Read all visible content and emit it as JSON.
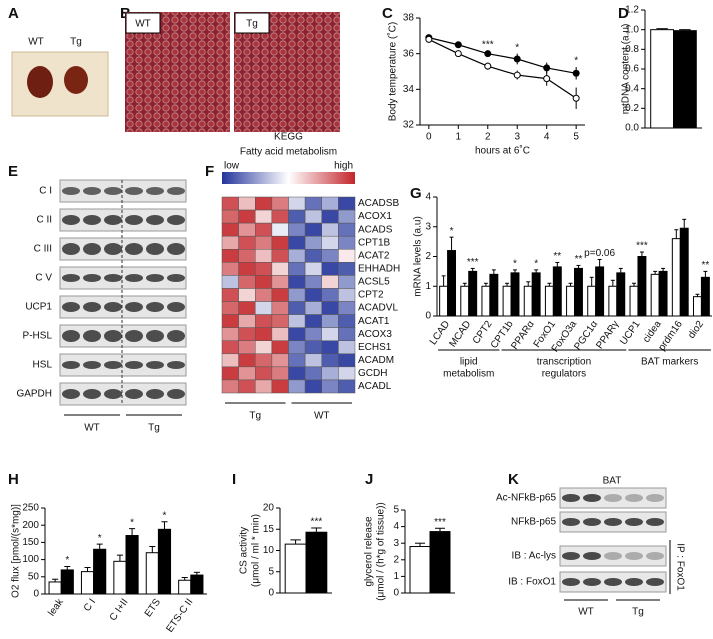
{
  "panel_A": {
    "letter": "A",
    "labels": [
      "WT",
      "Tg"
    ]
  },
  "panel_B": {
    "letter": "B",
    "labels": [
      "WT",
      "Tg"
    ]
  },
  "panel_E": {
    "letter": "E",
    "rows": [
      "C I",
      "C II",
      "C III",
      "C V",
      "UCP1",
      "P-HSL",
      "HSL",
      "GAPDH"
    ],
    "groups": [
      "WT",
      "Tg"
    ]
  },
  "panel_K": {
    "letter": "K",
    "title": "BAT",
    "rows": [
      "Ac-NFkB-p65",
      "NFkB-p65",
      "IB : Ac-lys",
      "IB : FoxO1"
    ],
    "side_label": "IP : FoxO1",
    "groups": [
      "WT",
      "Tg"
    ]
  },
  "chart_data": [
    {
      "type": "line",
      "panel": "C",
      "ylabel": "Body temperature (˚C)",
      "xlabel": "hours at 6˚C",
      "x": [
        0,
        1,
        2,
        3,
        4,
        5
      ],
      "xlim": [
        -0.3,
        5.3
      ],
      "xticks": [
        0,
        1,
        2,
        3,
        4,
        5
      ],
      "ylim": [
        32,
        38
      ],
      "yticks": [
        32,
        34,
        36,
        38
      ],
      "series": [
        {
          "color": "#000000",
          "values": [
            36.9,
            36.5,
            36.0,
            35.7,
            35.2,
            34.9
          ],
          "errors": [
            0.15,
            0.1,
            0.15,
            0.3,
            0.3,
            0.35
          ]
        },
        {
          "color": "#ffffff",
          "values": [
            36.8,
            36.0,
            35.3,
            34.8,
            34.6,
            33.5
          ],
          "errors": [
            0.15,
            0.15,
            0.2,
            0.25,
            0.4,
            0.6
          ]
        }
      ],
      "annotations": [
        {
          "x": 2,
          "text": "***"
        },
        {
          "x": 3,
          "text": "*"
        },
        {
          "x": 5,
          "text": "*"
        }
      ]
    },
    {
      "type": "bar",
      "panel": "D",
      "ylabel": "mtDNA content (a.u)",
      "categories": [
        null
      ],
      "ylim": [
        0,
        1.2
      ],
      "yticks": [
        {
          "value": 0,
          "label": "0.0"
        },
        {
          "value": 0.2,
          "label": "0.2"
        },
        {
          "value": 0.4,
          "label": "0.4"
        },
        {
          "value": 0.6,
          "label": "0.6"
        },
        {
          "value": 0.8,
          "label": "0.8"
        },
        {
          "value": 1,
          "label": "1.0"
        },
        {
          "value": 1.2,
          "label": "1.2"
        }
      ],
      "series": [
        {
          "color": "#ffffff",
          "values": [
            1.0
          ],
          "errors": [
            0.01
          ]
        },
        {
          "color": "#000000",
          "values": [
            0.99
          ],
          "errors": [
            0.01
          ]
        }
      ]
    },
    {
      "type": "heatmap",
      "panel": "F",
      "title": "KEGG",
      "subtitle": "Fatty acid metabolism",
      "low_label": "low",
      "high_label": "high",
      "zlim": [
        -1,
        1
      ],
      "colormap": [
        "#23349b",
        "#ffffff",
        "#c3262b"
      ],
      "groups": [
        "Tg",
        "WT"
      ],
      "rows": [
        "ACADSB",
        "ACOX1",
        "ACADS",
        "CPT1B",
        "ACAT2",
        "EHHADH",
        "ACSL5",
        "CPT2",
        "ACADVL",
        "ACAT1",
        "ACOX3",
        "ECHS1",
        "ACADM",
        "GCDH",
        "ACADL"
      ],
      "values": [
        [
          0.8,
          0.3,
          0.9,
          0.6,
          -0.2,
          -0.7,
          -0.4,
          -0.9
        ],
        [
          0.7,
          0.9,
          0.2,
          0.8,
          -0.8,
          -0.3,
          -0.9,
          -0.5
        ],
        [
          0.9,
          0.5,
          0.8,
          -0.1,
          -0.6,
          -0.9,
          -0.3,
          -0.7
        ],
        [
          0.4,
          0.8,
          0.6,
          0.9,
          -0.9,
          -0.5,
          -0.2,
          -0.6
        ],
        [
          0.9,
          0.7,
          0.3,
          0.8,
          -0.4,
          -0.8,
          -0.6,
          0.1
        ],
        [
          0.6,
          0.9,
          0.8,
          0.2,
          -0.7,
          -0.2,
          -0.9,
          -0.8
        ],
        [
          -0.3,
          0.7,
          0.9,
          0.5,
          -0.9,
          -0.6,
          0.2,
          -0.5
        ],
        [
          0.8,
          0.2,
          0.6,
          0.9,
          -0.5,
          -0.9,
          -0.7,
          -0.3
        ],
        [
          0.7,
          0.9,
          -0.2,
          0.6,
          -0.8,
          -0.4,
          -0.9,
          -0.6
        ],
        [
          0.9,
          0.4,
          0.8,
          0.7,
          -0.3,
          -0.9,
          -0.5,
          -0.8
        ],
        [
          0.5,
          0.8,
          0.9,
          0.3,
          -0.9,
          -0.6,
          -0.2,
          -0.7
        ],
        [
          0.8,
          0.6,
          0.2,
          0.9,
          -0.6,
          -0.8,
          -0.9,
          -0.3
        ],
        [
          0.3,
          0.9,
          0.7,
          0.5,
          -0.7,
          -0.3,
          -0.8,
          -0.9
        ],
        [
          0.9,
          0.5,
          0.8,
          0.6,
          -0.9,
          -0.7,
          -0.4,
          -0.2
        ],
        [
          0.6,
          0.8,
          0.4,
          0.9,
          -0.5,
          -0.9,
          -0.6,
          -0.8
        ]
      ]
    },
    {
      "type": "bar",
      "panel": "G",
      "ylabel": "mRNA levels (a.u)",
      "categories": [
        "LCAD",
        "MCAD",
        "CPT2",
        "CPT1b",
        "PPARα",
        "FoxO1",
        "FoxO3a",
        "PGC1α",
        "PPARγ",
        "UCP1",
        "cidea",
        "prdm16",
        "dio2"
      ],
      "ylim": [
        0,
        4
      ],
      "yticks": [
        0,
        1,
        2,
        3,
        4
      ],
      "series": [
        {
          "color": "#ffffff",
          "values": [
            1.0,
            1.0,
            1.0,
            1.0,
            1.0,
            1.0,
            1.0,
            1.0,
            1.0,
            1.0,
            1.4,
            2.6,
            0.65
          ],
          "errors": [
            0.35,
            0.1,
            0.1,
            0.1,
            0.15,
            0.1,
            0.1,
            0.3,
            0.2,
            0.1,
            0.1,
            0.3,
            0.08
          ]
        },
        {
          "color": "#000000",
          "values": [
            2.2,
            1.5,
            1.4,
            1.45,
            1.45,
            1.65,
            1.6,
            1.65,
            1.45,
            2.0,
            1.5,
            2.95,
            1.3
          ],
          "errors": [
            0.45,
            0.1,
            0.15,
            0.1,
            0.1,
            0.15,
            0.1,
            0.25,
            0.15,
            0.15,
            0.1,
            0.3,
            0.2
          ]
        }
      ],
      "annotations": [
        {
          "category": "LCAD",
          "text": "*"
        },
        {
          "category": "MCAD",
          "text": "***"
        },
        {
          "category": "CPT1b",
          "text": "*"
        },
        {
          "category": "PPARα",
          "text": "*"
        },
        {
          "category": "FoxO1",
          "text": "**"
        },
        {
          "category": "FoxO3a",
          "text": "**"
        },
        {
          "category": "PGC1α",
          "text": "p=0.06"
        },
        {
          "category": "UCP1",
          "text": "***"
        },
        {
          "category": "dio2",
          "text": "**"
        }
      ],
      "groups": [
        {
          "label": [
            "lipid",
            "metabolism"
          ],
          "from": "LCAD",
          "to": "CPT2"
        },
        {
          "label": [
            "transcription",
            "regulators"
          ],
          "from": "CPT1b",
          "to": "PPARγ"
        },
        {
          "label": [
            "BAT markers"
          ],
          "from": "UCP1",
          "to": "dio2"
        }
      ]
    },
    {
      "type": "bar",
      "panel": "H",
      "ylabel": "O2 flux [pmol/(s*mg)]",
      "categories": [
        "leak",
        "C I",
        "C I+II",
        "ETS",
        "ETS-C II"
      ],
      "ylim": [
        0,
        250
      ],
      "yticks": [
        0,
        50,
        100,
        150,
        200,
        250
      ],
      "series": [
        {
          "color": "#ffffff",
          "values": [
            35,
            65,
            95,
            120,
            40
          ],
          "errors": [
            8,
            12,
            18,
            18,
            8
          ]
        },
        {
          "color": "#000000",
          "values": [
            70,
            130,
            170,
            188,
            55
          ],
          "errors": [
            10,
            15,
            20,
            22,
            8
          ]
        }
      ],
      "annotations": [
        {
          "category": "leak",
          "text": "*"
        },
        {
          "category": "C I",
          "text": "*"
        },
        {
          "category": "C I+II",
          "text": "*"
        },
        {
          "category": "ETS",
          "text": "*"
        }
      ]
    },
    {
      "type": "bar",
      "panel": "I",
      "ylabel": [
        "CS activity",
        "(μmol / ml * min)"
      ],
      "categories": [
        null
      ],
      "ylim": [
        0,
        20
      ],
      "yticks": [
        0,
        5,
        10,
        15,
        20
      ],
      "series": [
        {
          "color": "#ffffff",
          "values": [
            11.5
          ],
          "errors": [
            1
          ]
        },
        {
          "color": "#000000",
          "values": [
            14.3
          ],
          "errors": [
            1
          ]
        }
      ],
      "annotations": [
        {
          "category": null,
          "text": "***"
        }
      ]
    },
    {
      "type": "bar",
      "panel": "J",
      "ylabel": [
        "glycerol release",
        "(μmol / (h*g of tissue))"
      ],
      "categories": [
        null
      ],
      "ylim": [
        0,
        5
      ],
      "yticks": [
        0,
        1,
        2,
        3,
        4,
        5
      ],
      "series": [
        {
          "color": "#ffffff",
          "values": [
            2.8
          ],
          "errors": [
            0.2
          ]
        },
        {
          "color": "#000000",
          "values": [
            3.7
          ],
          "errors": [
            0.2
          ]
        }
      ],
      "annotations": [
        {
          "category": null,
          "text": "***"
        }
      ]
    }
  ]
}
